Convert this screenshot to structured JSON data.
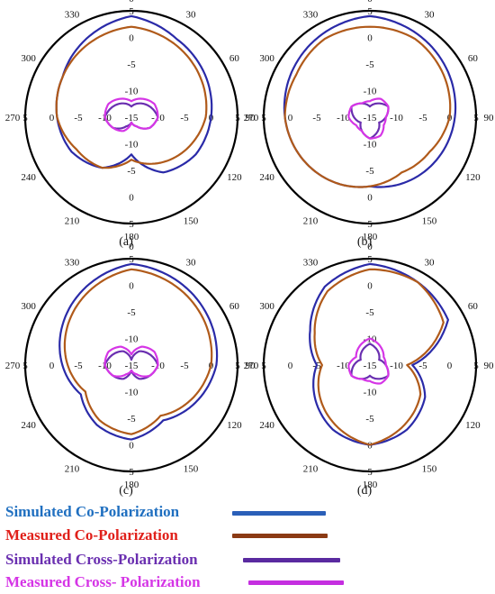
{
  "chart_data": [
    {
      "type": "polar",
      "panel_label": "(a)",
      "angle_ticks": [
        "0",
        "30",
        "60",
        "90",
        "120",
        "150",
        "180",
        "210",
        "240",
        "270",
        "300",
        "330"
      ],
      "radial_tick_labels": [
        "5",
        "0",
        "-5",
        "-10",
        "-15"
      ],
      "rlim": [
        -15,
        5
      ],
      "series": [
        {
          "name": "Simulated Co-Polarization",
          "angles_deg": [
            0,
            30,
            60,
            90,
            120,
            150,
            180,
            210,
            240,
            270,
            300,
            330,
            360
          ],
          "values": [
            4,
            2,
            1,
            0,
            -1,
            -3,
            -8,
            -4,
            -2,
            -1,
            0,
            2,
            4
          ]
        },
        {
          "name": "Measured Co-Polarization",
          "angles_deg": [
            0,
            30,
            60,
            90,
            120,
            150,
            180,
            210,
            240,
            270,
            300,
            330,
            360
          ],
          "values": [
            2,
            1,
            0,
            -1,
            -3,
            -5,
            -7,
            -4,
            -3,
            -1,
            0,
            1,
            2
          ]
        },
        {
          "name": "Simulated Cross-Polarization",
          "angles_deg": [
            0,
            30,
            60,
            90,
            120,
            150,
            180,
            210,
            240,
            270,
            300,
            330,
            360
          ],
          "values": [
            -13,
            -12,
            -11,
            -10,
            -11,
            -13,
            -14,
            -13,
            -11,
            -10,
            -11,
            -12,
            -13
          ]
        },
        {
          "name": "Measured Cross- Polarization",
          "angles_deg": [
            0,
            30,
            60,
            90,
            120,
            150,
            180,
            210,
            240,
            270,
            300,
            330,
            360
          ],
          "values": [
            -12,
            -11,
            -10,
            -10,
            -11,
            -13,
            -14,
            -12,
            -11,
            -10,
            -10,
            -11,
            -12
          ]
        }
      ]
    },
    {
      "type": "polar",
      "panel_label": "(b)",
      "angle_ticks": [
        "0",
        "30",
        "60",
        "90",
        "120",
        "150",
        "180",
        "210",
        "240",
        "270",
        "300",
        "330"
      ],
      "radial_tick_labels": [
        "5",
        "0",
        "-5",
        "-10",
        "-15"
      ],
      "rlim": [
        -15,
        5
      ],
      "series": [
        {
          "name": "Simulated Co-Polarization",
          "angles_deg": [
            0,
            30,
            60,
            90,
            120,
            150,
            180,
            210,
            240,
            270,
            300,
            330,
            360
          ],
          "values": [
            4,
            3,
            2,
            1,
            0,
            -1,
            -2,
            -1,
            0,
            1,
            2,
            3,
            4
          ]
        },
        {
          "name": "Measured Co-Polarization",
          "angles_deg": [
            0,
            30,
            60,
            90,
            120,
            150,
            180,
            210,
            240,
            270,
            300,
            330,
            360
          ],
          "values": [
            2,
            2,
            1,
            0,
            -2,
            -3,
            -2,
            -1,
            0,
            1,
            1,
            2,
            2
          ]
        },
        {
          "name": "Simulated Cross-Polarization",
          "angles_deg": [
            0,
            30,
            60,
            90,
            120,
            150,
            180,
            210,
            240,
            270,
            300,
            330,
            360
          ],
          "values": [
            -13,
            -12,
            -11,
            -12,
            -13,
            -12,
            -11,
            -12,
            -13,
            -12,
            -11,
            -12,
            -13
          ]
        },
        {
          "name": "Measured Cross- Polarization",
          "angles_deg": [
            0,
            30,
            60,
            90,
            120,
            150,
            180,
            210,
            240,
            270,
            300,
            330,
            360
          ],
          "values": [
            -12,
            -11,
            -11,
            -12,
            -12,
            -11,
            -11,
            -12,
            -12,
            -11,
            -11,
            -12,
            -12
          ]
        }
      ]
    },
    {
      "type": "polar",
      "panel_label": "(c)",
      "angle_ticks": [
        "0",
        "30",
        "60",
        "90",
        "120",
        "150",
        "180",
        "210",
        "240",
        "270",
        "300",
        "330"
      ],
      "radial_tick_labels": [
        "5",
        "0",
        "-5",
        "-10",
        "-15"
      ],
      "rlim": [
        -15,
        5
      ],
      "series": [
        {
          "name": "Simulated Co-Polarization",
          "angles_deg": [
            0,
            30,
            60,
            90,
            120,
            150,
            180,
            210,
            240,
            270,
            300,
            330,
            360
          ],
          "values": [
            4,
            3,
            2,
            1,
            -1,
            -3,
            -1,
            -2,
            -4,
            -2,
            0,
            2,
            4
          ]
        },
        {
          "name": "Measured Co-Polarization",
          "angles_deg": [
            0,
            30,
            60,
            90,
            120,
            150,
            180,
            210,
            240,
            270,
            300,
            330,
            360
          ],
          "values": [
            3,
            2,
            1,
            0,
            -2,
            -4,
            -2,
            -3,
            -5,
            -3,
            -1,
            1,
            3
          ]
        },
        {
          "name": "Simulated Cross-Polarization",
          "angles_deg": [
            0,
            30,
            60,
            90,
            120,
            150,
            180,
            210,
            240,
            270,
            300,
            330,
            360
          ],
          "values": [
            -14,
            -12,
            -11,
            -10,
            -11,
            -12,
            -14,
            -12,
            -11,
            -10,
            -11,
            -12,
            -14
          ]
        },
        {
          "name": "Measured Cross- Polarization",
          "angles_deg": [
            0,
            30,
            60,
            90,
            120,
            150,
            180,
            210,
            240,
            270,
            300,
            330,
            360
          ],
          "values": [
            -13,
            -11,
            -10,
            -10,
            -11,
            -13,
            -14,
            -13,
            -11,
            -10,
            -10,
            -11,
            -13
          ]
        }
      ]
    },
    {
      "type": "polar",
      "panel_label": "(d)",
      "angle_ticks": [
        "0",
        "30",
        "60",
        "90",
        "120",
        "150",
        "180",
        "210",
        "240",
        "270",
        "300",
        "330"
      ],
      "radial_tick_labels": [
        "5",
        "0",
        "-5",
        "-10",
        "-15"
      ],
      "rlim": [
        -15,
        5
      ],
      "series": [
        {
          "name": "Simulated Co-Polarization",
          "angles_deg": [
            0,
            30,
            60,
            90,
            120,
            150,
            180,
            210,
            240,
            270,
            300,
            330,
            360
          ],
          "values": [
            4,
            3,
            2,
            -7,
            -3,
            -1,
            0,
            -1,
            -3,
            -5,
            -2,
            2,
            4
          ]
        },
        {
          "name": "Measured Co-Polarization",
          "angles_deg": [
            0,
            30,
            60,
            90,
            120,
            150,
            180,
            210,
            240,
            270,
            300,
            330,
            360
          ],
          "values": [
            3,
            3,
            1,
            -8,
            -4,
            -2,
            0,
            -2,
            -4,
            -6,
            -3,
            1,
            3
          ]
        },
        {
          "name": "Simulated Cross-Polarization",
          "angles_deg": [
            0,
            30,
            60,
            90,
            120,
            150,
            180,
            210,
            240,
            270,
            300,
            330,
            360
          ],
          "values": [
            -11,
            -12,
            -13,
            -12,
            -11,
            -12,
            -13,
            -12,
            -11,
            -12,
            -13,
            -12,
            -11
          ]
        },
        {
          "name": "Measured Cross- Polarization",
          "angles_deg": [
            0,
            30,
            60,
            90,
            120,
            150,
            180,
            210,
            240,
            270,
            300,
            330,
            360
          ],
          "values": [
            -10,
            -11,
            -12,
            -12,
            -11,
            -11,
            -12,
            -12,
            -11,
            -11,
            -12,
            -11,
            -10
          ]
        }
      ]
    }
  ],
  "legend": [
    {
      "label": "Simulated Co-Polarization",
      "text_color": "#1f6fc0",
      "line_color": "#2a5fb8"
    },
    {
      "label": "Measured Co-Polarization",
      "text_color": "#e0201a",
      "line_color": "#8b3a14"
    },
    {
      "label": "Simulated Cross-Polarization",
      "text_color": "#6a2fb0",
      "line_color": "#5a2aa0"
    },
    {
      "label": "Measured Cross- Polarization",
      "text_color": "#d535e6",
      "line_color": "#c52ee0"
    }
  ],
  "series_colors": [
    "#2a2aa8",
    "#b05a1a",
    "#6a2fb0",
    "#d535e6"
  ]
}
